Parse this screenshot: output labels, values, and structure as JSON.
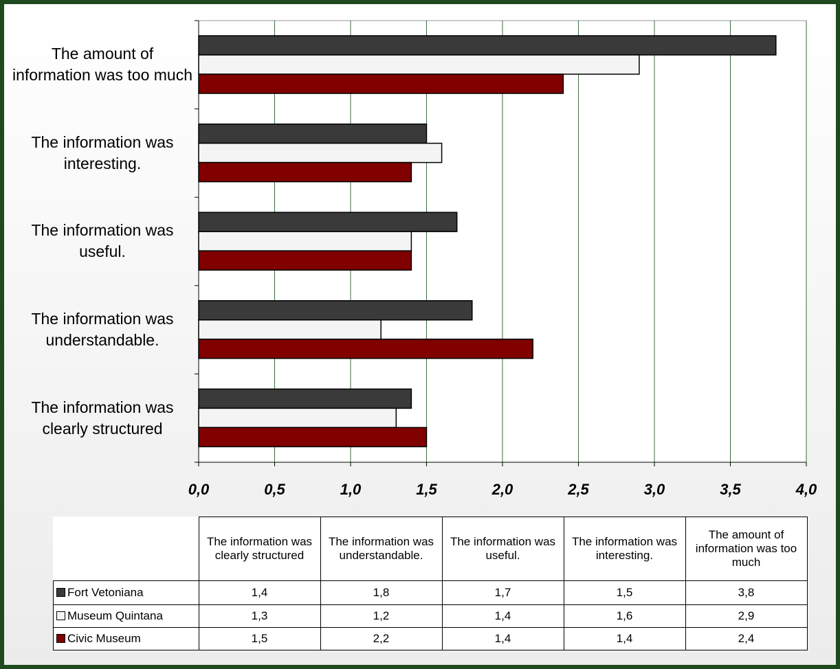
{
  "chart_data": {
    "type": "bar",
    "orientation": "horizontal",
    "categories": [
      "The information was clearly structured",
      "The information was understandable.",
      "The information was useful.",
      "The information was interesting.",
      "The amount of information was too much"
    ],
    "series": [
      {
        "name": "Fort Vetoniana",
        "color": "#3a3a3a",
        "values": [
          1.4,
          1.8,
          1.7,
          1.5,
          3.8
        ],
        "value_labels": [
          "1,4",
          "1,8",
          "1,7",
          "1,5",
          "3,8"
        ]
      },
      {
        "name": "Museum Quintana",
        "color": "#f4f4f4",
        "values": [
          1.3,
          1.2,
          1.4,
          1.6,
          2.9
        ],
        "value_labels": [
          "1,3",
          "1,2",
          "1,4",
          "1,6",
          "2,9"
        ]
      },
      {
        "name": "Civic Museum",
        "color": "#800000",
        "values": [
          1.5,
          2.2,
          1.4,
          1.4,
          2.4
        ],
        "value_labels": [
          "1,5",
          "2,2",
          "1,4",
          "1,4",
          "2,4"
        ]
      }
    ],
    "xlim": [
      0,
      4
    ],
    "xticks": [
      {
        "value": 0,
        "label": "0,0"
      },
      {
        "value": 0.5,
        "label": "0,5"
      },
      {
        "value": 1,
        "label": "1,0"
      },
      {
        "value": 1.5,
        "label": "1,5"
      },
      {
        "value": 2,
        "label": "2,0"
      },
      {
        "value": 2.5,
        "label": "2,5"
      },
      {
        "value": 3,
        "label": "3,0"
      },
      {
        "value": 3.5,
        "label": "3,5"
      },
      {
        "value": 4,
        "label": "4,0"
      }
    ],
    "grid": true,
    "legend": "table"
  }
}
